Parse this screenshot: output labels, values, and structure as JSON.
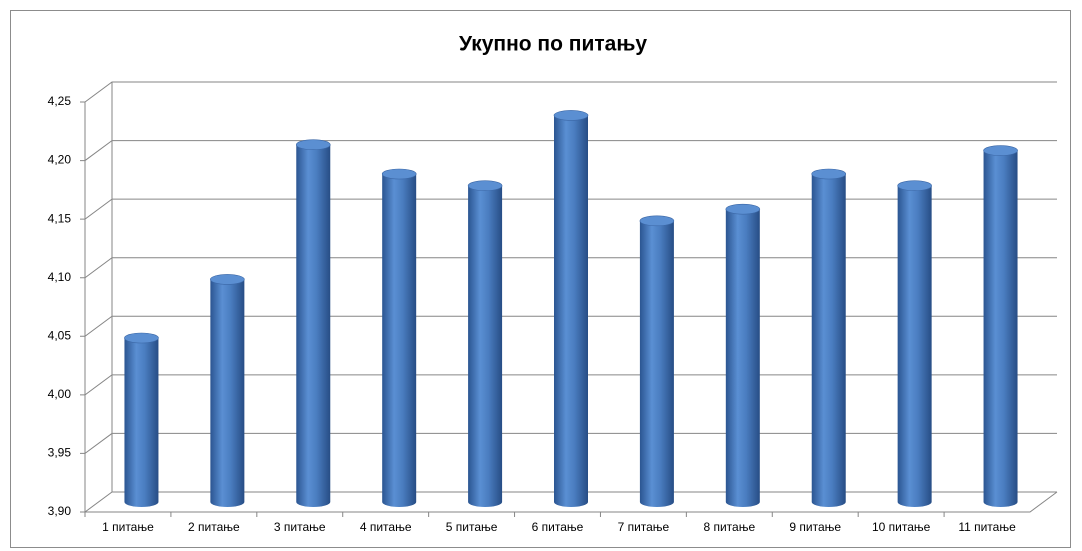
{
  "chart_data": {
    "type": "bar",
    "title": "Укупно по питању",
    "categories": [
      "1 питање",
      "2 питање",
      "3 питање",
      "4 питање",
      "5 питање",
      "6 питање",
      "7 питање",
      "8 питање",
      "9 питање",
      "10 питање",
      "11 питање"
    ],
    "values": [
      4.04,
      4.09,
      4.205,
      4.18,
      4.17,
      4.23,
      4.14,
      4.15,
      4.18,
      4.17,
      4.2
    ],
    "color": "#4f81bd",
    "ylim": [
      3.9,
      4.25
    ],
    "yticks": [
      {
        "value": 3.9,
        "label": "3,90"
      },
      {
        "value": 3.95,
        "label": "3,95"
      },
      {
        "value": 4.0,
        "label": "4,00"
      },
      {
        "value": 4.05,
        "label": "4,05"
      },
      {
        "value": 4.1,
        "label": "4,10"
      },
      {
        "value": 4.15,
        "label": "4,15"
      },
      {
        "value": 4.2,
        "label": "4,20"
      },
      {
        "value": 4.25,
        "label": "4,25"
      }
    ],
    "grid": true
  }
}
